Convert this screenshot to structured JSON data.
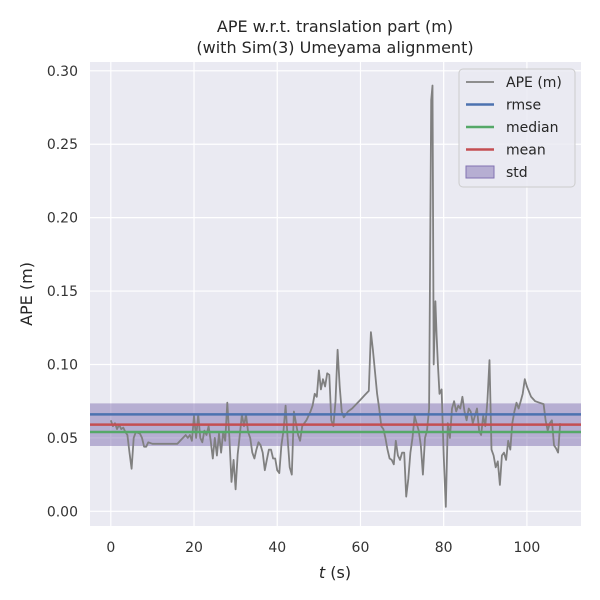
{
  "chart_data": {
    "type": "line",
    "title_line1": "APE w.r.t. translation part (m)",
    "title_line2": "(with Sim(3) Umeyama alignment)",
    "xlabel_var": "t",
    "xlabel_unit": " (s)",
    "ylabel": "APE (m)",
    "xlim": [
      -5,
      113
    ],
    "ylim": [
      -0.01,
      0.306
    ],
    "xticks": [
      0,
      20,
      40,
      60,
      80,
      100
    ],
    "xtick_labels": [
      "0",
      "20",
      "40",
      "60",
      "80",
      "100"
    ],
    "yticks": [
      0.0,
      0.05,
      0.1,
      0.15,
      0.2,
      0.25,
      0.3
    ],
    "ytick_labels": [
      "0.00",
      "0.05",
      "0.10",
      "0.15",
      "0.20",
      "0.25",
      "0.30"
    ],
    "grid": true,
    "legend_position": "top-right",
    "stats": {
      "rmse": 0.066,
      "median": 0.054,
      "mean": 0.059,
      "std": 0.0145
    },
    "colors": {
      "ape": "#808080",
      "rmse": "#4c72b0",
      "median": "#55a868",
      "mean": "#c44e52",
      "std": "#8172b2",
      "background": "#eaeaf2",
      "grid": "#ffffff"
    },
    "legend": [
      {
        "key": "ape",
        "label": "APE (m)",
        "kind": "line"
      },
      {
        "key": "rmse",
        "label": "rmse",
        "kind": "line"
      },
      {
        "key": "median",
        "label": "median",
        "kind": "line"
      },
      {
        "key": "mean",
        "label": "mean",
        "kind": "line"
      },
      {
        "key": "std",
        "label": "std",
        "kind": "patch"
      }
    ],
    "series": [
      {
        "name": "APE (m)",
        "x": [
          0,
          0.5,
          1,
          1.5,
          2,
          2.5,
          3,
          3.5,
          4,
          4.5,
          5,
          5.5,
          6,
          7,
          7.5,
          8,
          8.5,
          9,
          10,
          12,
          14,
          16,
          17,
          18,
          18.5,
          19,
          19.5,
          20,
          20.5,
          21,
          21.5,
          22,
          22.5,
          23,
          23.5,
          24,
          24.5,
          25,
          25.5,
          26,
          26.5,
          27,
          27.5,
          28,
          28.5,
          29,
          29.5,
          30,
          30.5,
          31,
          31.5,
          32,
          32.5,
          33,
          33.5,
          34,
          34.5,
          35,
          35.5,
          36,
          36.5,
          37,
          37.5,
          38,
          38.5,
          39,
          39.5,
          40,
          40.5,
          41,
          41.5,
          42,
          42.5,
          43,
          43.5,
          44,
          44.5,
          45,
          45.5,
          46,
          46.5,
          47,
          47.5,
          48,
          48.5,
          49,
          49.5,
          50,
          50.5,
          51,
          51.5,
          52,
          52.5,
          53,
          53.5,
          54,
          54.5,
          55,
          55.5,
          56,
          56.5,
          57,
          58,
          59,
          60,
          61,
          62,
          62.5,
          63,
          63.5,
          64,
          64.5,
          65,
          65.5,
          66,
          66.5,
          67,
          67.5,
          68,
          68.5,
          69,
          69.5,
          70,
          70.5,
          71,
          71.5,
          72,
          72.5,
          73,
          73.5,
          74,
          74.5,
          75,
          75.5,
          76,
          76.5,
          77,
          77.3,
          77.6,
          78,
          78.3,
          78.6,
          79,
          79.5,
          80,
          80.5,
          81,
          81.5,
          82,
          82.5,
          83,
          83.5,
          84,
          84.5,
          85,
          85.5,
          86,
          86.5,
          87,
          87.5,
          88,
          88.5,
          89,
          89.5,
          90,
          90.5,
          91,
          91.5,
          92,
          92.5,
          93,
          93.5,
          94,
          94.5,
          95,
          95.5,
          96,
          96.5,
          97,
          97.5,
          98,
          98.5,
          99,
          99.5,
          100,
          101,
          102,
          103,
          104,
          104.5,
          105,
          105.5,
          106,
          106.5,
          107,
          107.5,
          108
        ],
        "y": [
          0.062,
          0.058,
          0.06,
          0.056,
          0.059,
          0.056,
          0.057,
          0.054,
          0.052,
          0.04,
          0.029,
          0.05,
          0.054,
          0.053,
          0.05,
          0.044,
          0.044,
          0.047,
          0.046,
          0.046,
          0.046,
          0.046,
          0.049,
          0.052,
          0.05,
          0.052,
          0.048,
          0.065,
          0.05,
          0.066,
          0.05,
          0.047,
          0.055,
          0.052,
          0.058,
          0.048,
          0.036,
          0.05,
          0.038,
          0.053,
          0.04,
          0.054,
          0.048,
          0.074,
          0.05,
          0.02,
          0.035,
          0.015,
          0.039,
          0.052,
          0.066,
          0.058,
          0.066,
          0.054,
          0.05,
          0.04,
          0.036,
          0.042,
          0.047,
          0.045,
          0.04,
          0.028,
          0.035,
          0.042,
          0.042,
          0.036,
          0.036,
          0.028,
          0.026,
          0.045,
          0.055,
          0.072,
          0.05,
          0.03,
          0.025,
          0.068,
          0.06,
          0.052,
          0.048,
          0.058,
          0.06,
          0.062,
          0.065,
          0.068,
          0.072,
          0.08,
          0.078,
          0.096,
          0.083,
          0.09,
          0.085,
          0.094,
          0.093,
          0.062,
          0.058,
          0.075,
          0.11,
          0.085,
          0.068,
          0.064,
          0.066,
          0.068,
          0.07,
          0.073,
          0.076,
          0.079,
          0.082,
          0.122,
          0.11,
          0.095,
          0.08,
          0.07,
          0.058,
          0.056,
          0.05,
          0.042,
          0.036,
          0.035,
          0.032,
          0.048,
          0.038,
          0.035,
          0.04,
          0.04,
          0.01,
          0.022,
          0.04,
          0.05,
          0.065,
          0.06,
          0.055,
          0.045,
          0.025,
          0.05,
          0.055,
          0.07,
          0.28,
          0.29,
          0.1,
          0.143,
          0.12,
          0.1,
          0.08,
          0.083,
          0.038,
          0.003,
          0.06,
          0.05,
          0.07,
          0.075,
          0.068,
          0.072,
          0.07,
          0.078,
          0.068,
          0.062,
          0.07,
          0.068,
          0.06,
          0.065,
          0.07,
          0.055,
          0.052,
          0.065,
          0.058,
          0.075,
          0.103,
          0.042,
          0.038,
          0.03,
          0.034,
          0.018,
          0.038,
          0.04,
          0.035,
          0.048,
          0.042,
          0.06,
          0.068,
          0.074,
          0.07,
          0.075,
          0.08,
          0.09,
          0.085,
          0.078,
          0.075,
          0.074,
          0.073,
          0.062,
          0.055,
          0.06,
          0.062,
          0.045,
          0.043,
          0.04,
          0.06
        ]
      }
    ]
  }
}
